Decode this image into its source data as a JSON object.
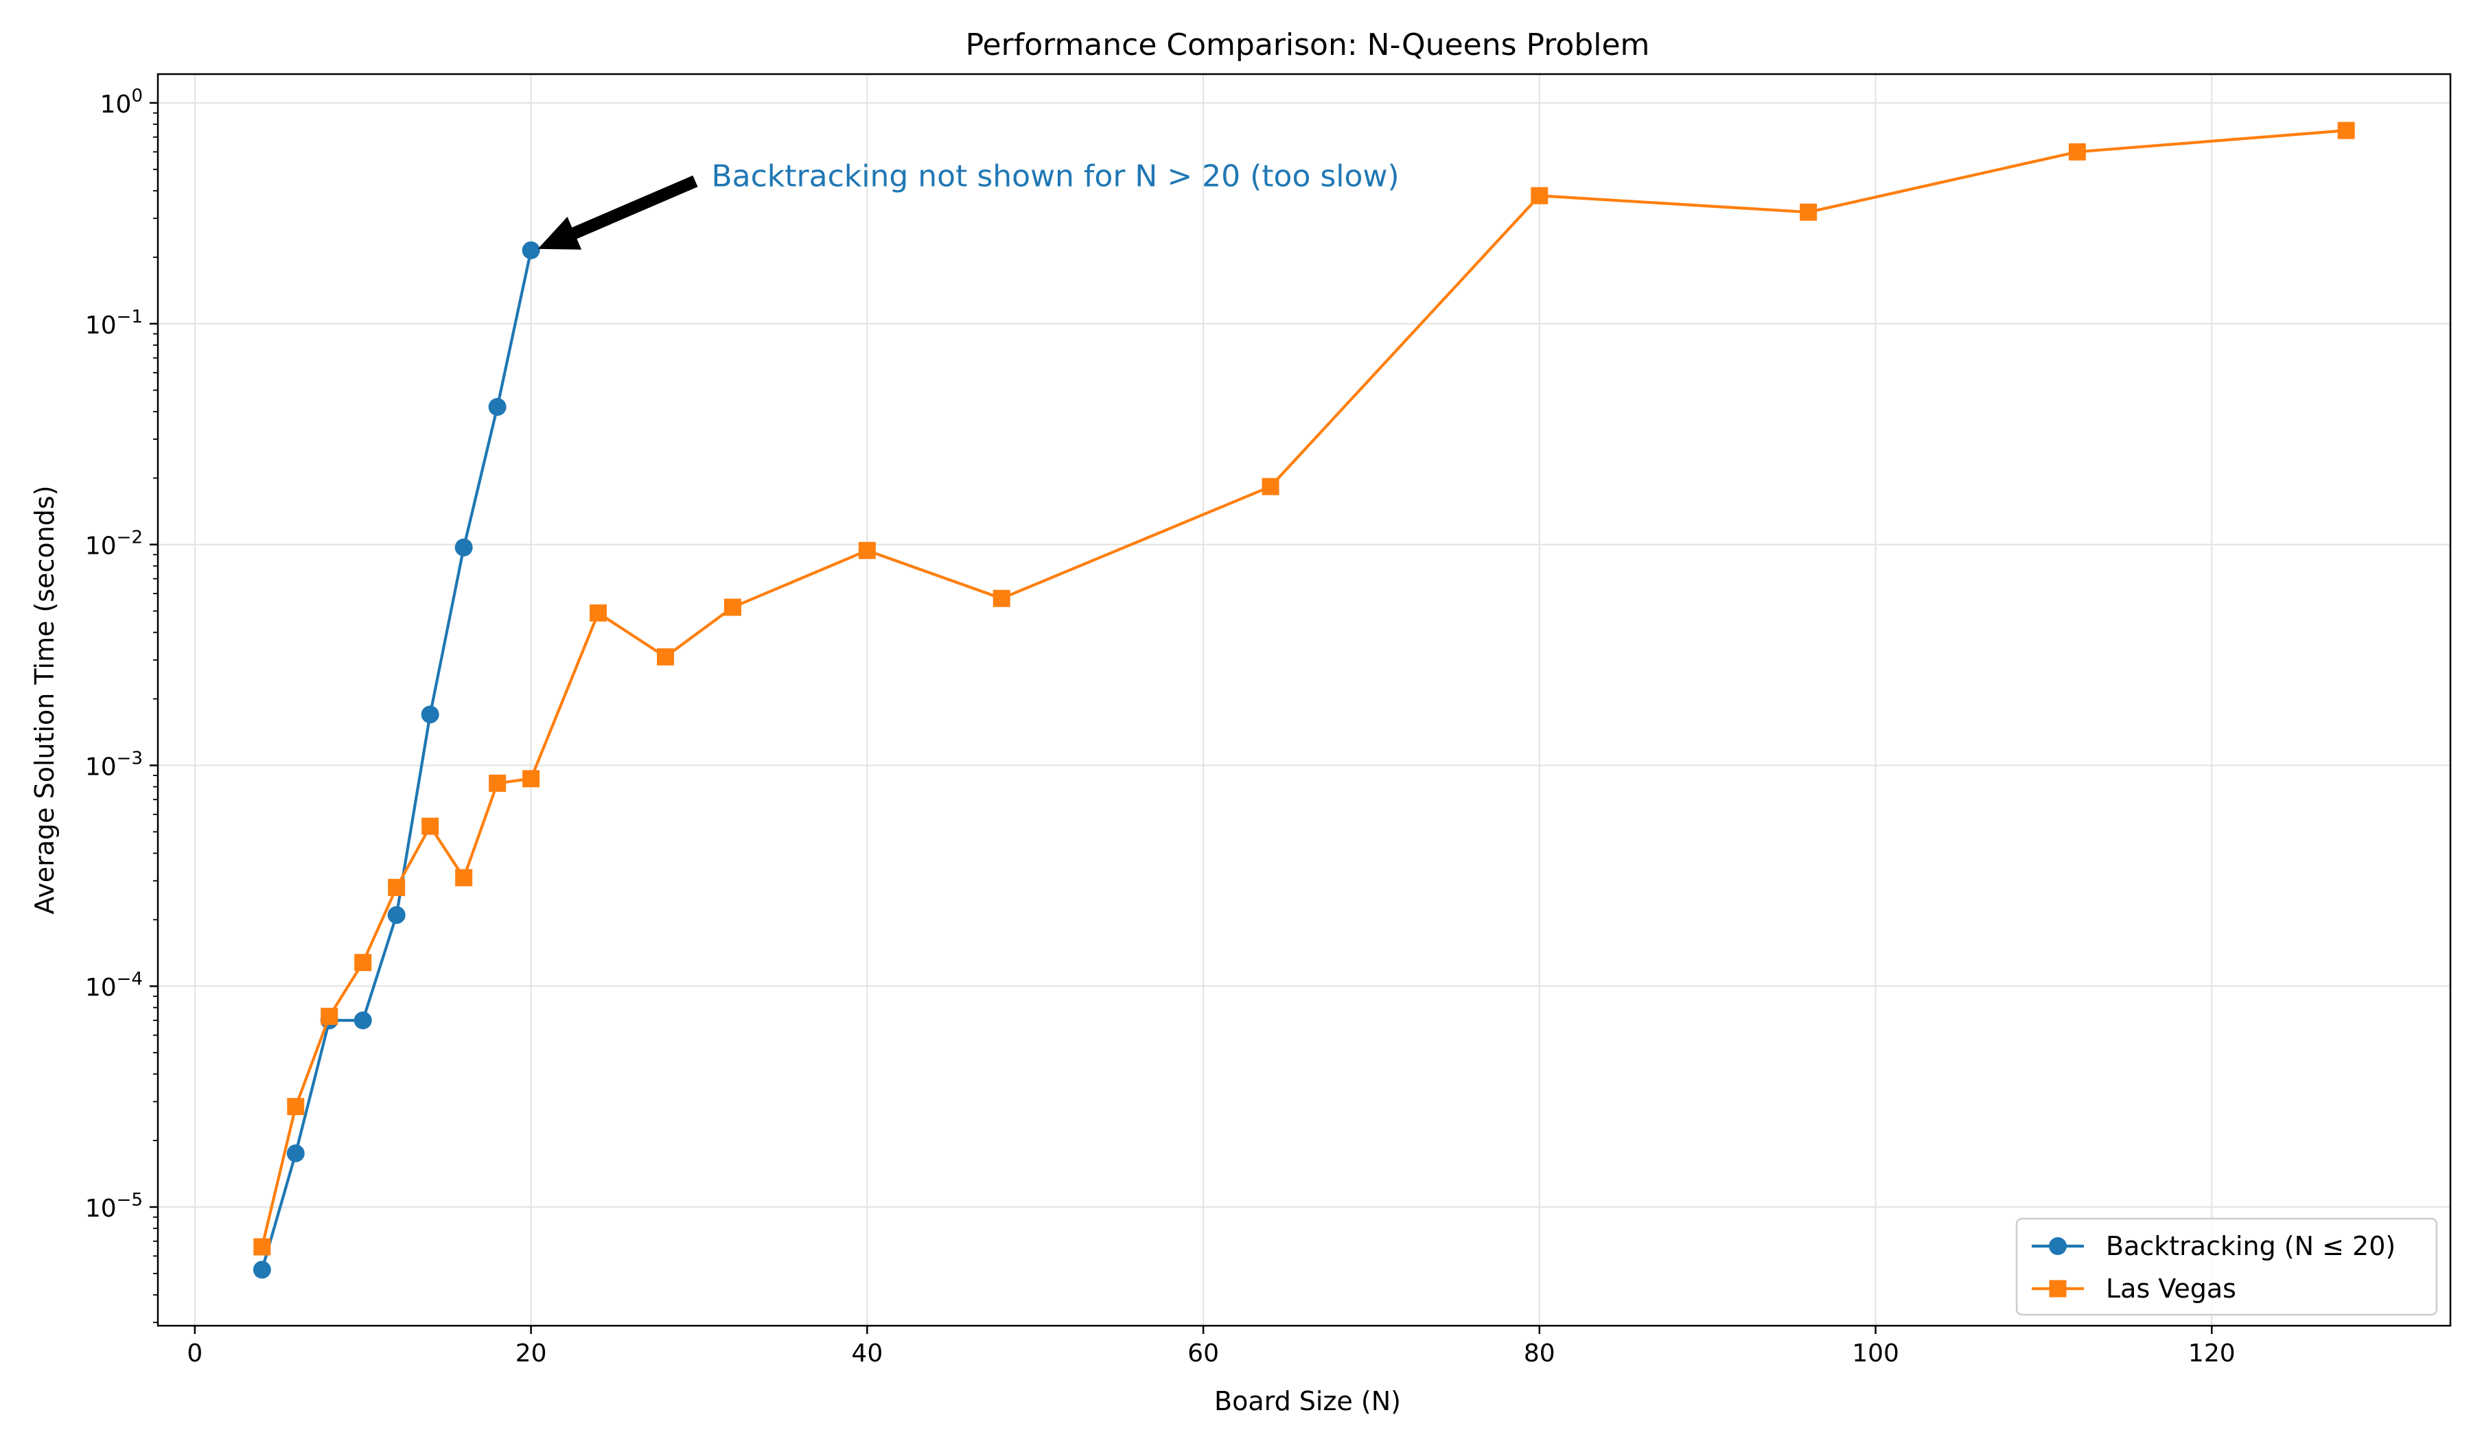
{
  "chart_data": {
    "type": "line",
    "title": "Performance Comparison: N-Queens Problem",
    "xlabel": "Board Size (N)",
    "ylabel": "Average Solution Time (seconds)",
    "xlim": [
      -2.2,
      134.2
    ],
    "ylim": [
      2.9e-06,
      1.35
    ],
    "yscale": "log",
    "grid": true,
    "legend_position": "bottom-right",
    "x_ticks": [
      {
        "value": 0,
        "label": "0"
      },
      {
        "value": 20,
        "label": "20"
      },
      {
        "value": 40,
        "label": "40"
      },
      {
        "value": 60,
        "label": "60"
      },
      {
        "value": 80,
        "label": "80"
      },
      {
        "value": 100,
        "label": "100"
      },
      {
        "value": 120,
        "label": "120"
      }
    ],
    "y_ticks": [
      {
        "value": 1e-05,
        "base": "10",
        "exp": "−5"
      },
      {
        "value": 0.0001,
        "base": "10",
        "exp": "−4"
      },
      {
        "value": 0.001,
        "base": "10",
        "exp": "−3"
      },
      {
        "value": 0.01,
        "base": "10",
        "exp": "−2"
      },
      {
        "value": 0.1,
        "base": "10",
        "exp": "−1"
      },
      {
        "value": 1,
        "base": "10",
        "exp": "0"
      }
    ],
    "series": [
      {
        "name": "Backtracking (N ≤ 20)",
        "color": "#1f77b4",
        "marker": "circle",
        "x": [
          4,
          6,
          8,
          10,
          12,
          14,
          16,
          18,
          20
        ],
        "y": [
          5.2e-06,
          1.75e-05,
          7e-05,
          7e-05,
          0.00021,
          0.0017,
          0.0097,
          0.042,
          0.215
        ]
      },
      {
        "name": "Las Vegas",
        "color": "#ff7f0e",
        "marker": "square",
        "x": [
          4,
          6,
          8,
          10,
          12,
          14,
          16,
          18,
          20,
          24,
          28,
          32,
          40,
          48,
          64,
          80,
          96,
          112,
          128
        ],
        "y": [
          6.6e-06,
          2.85e-05,
          7.3e-05,
          0.000128,
          0.00028,
          0.00053,
          0.00031,
          0.00083,
          0.00087,
          0.0049,
          0.0031,
          0.0052,
          0.0094,
          0.0057,
          0.0183,
          0.38,
          0.32,
          0.6,
          0.75
        ]
      }
    ],
    "annotation": {
      "text": "Backtracking not shown for N > 20 (too slow)",
      "color": "#1f77b4",
      "arrow_from": {
        "x": 30,
        "y": 0.45
      },
      "arrow_to": {
        "x": 20,
        "y": 0.215
      }
    }
  }
}
